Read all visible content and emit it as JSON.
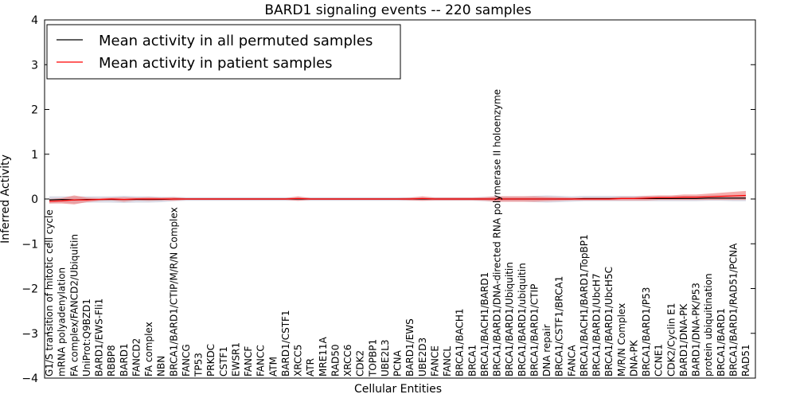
{
  "chart_data": {
    "type": "line",
    "title": "BARD1 signaling events -- 220 samples",
    "xlabel": "Cellular Entities",
    "ylabel": "Inferred Activity",
    "ylim": [
      -4,
      4
    ],
    "yticks": [
      -4,
      -3,
      -2,
      -1,
      0,
      1,
      2,
      3,
      4
    ],
    "ytick_labels": [
      "−4",
      "−3",
      "−2",
      "−1",
      "0",
      "1",
      "2",
      "3",
      "4"
    ],
    "grid": false,
    "legend_position": "top-left",
    "colors": {
      "permuted": "#000000",
      "patient": "#ff0000",
      "patient_band": "#f08080",
      "permuted_band": "#b0b0c8"
    },
    "categories": [
      "G1/S transition of mitotic cell cycle",
      "mRNA polyadenylation",
      "FA complex/FANCD2/Ubiquitin",
      "UniProt:Q9BZD1",
      "BARD1/EWS-Fli1",
      "RBBP8",
      "BARD1",
      "FANCD2",
      "FA complex",
      "NBN",
      "BRCA1/BARD1/CTIP/M/R/N Complex",
      "FANCG",
      "TP53",
      "PRKDC",
      "CSTF1",
      "EWSR1",
      "FANCF",
      "FANCC",
      "ATM",
      "BARD1/CSTF1",
      "XRCC5",
      "ATR",
      "MRE11A",
      "RAD50",
      "XRCC6",
      "CDK2",
      "TOPBP1",
      "UBE2L3",
      "PCNA",
      "BARD1/EWS",
      "UBE2D3",
      "FANCE",
      "FANCL",
      "BRCA1/BACH1",
      "BRCA1",
      "BRCA1/BACH1/BARD1",
      "BRCA1/BARD1/DNA-directed RNA polymerase II holoenzyme",
      "BRCA1/BARD1/Ubiquitin",
      "BRCA1/BARD1/ubiquitin",
      "BRCA1/BARD1/CTIP",
      "DNA repair",
      "BRCA1/CSTF1/BRCA1",
      "FANCA",
      "BRCA1/BACH1/BARD1/TopBP1",
      "BRCA1/BARD1/UbcH7",
      "BRCA1/BARD1/UbcH5C",
      "M/R/N Complex",
      "DNA-PK",
      "BRCA1/BARD1/P53",
      "CCNE1",
      "CDK2/Cyclin E1",
      "BARD1/DNA-PK",
      "BARD1/DNA-PK/P53",
      "protein ubiquitination",
      "BRCA1/BARD1",
      "BRCA1/BARD1/RAD51/PCNA",
      "RAD51"
    ],
    "series": [
      {
        "name": "Mean activity in all permuted samples",
        "values": [
          -0.02,
          -0.01,
          -0.02,
          -0.01,
          -0.01,
          -0.01,
          -0.01,
          -0.01,
          -0.01,
          -0.01,
          0,
          0,
          0,
          0,
          0,
          0,
          0,
          0,
          0,
          0,
          0,
          0,
          0,
          0,
          0,
          0,
          0,
          0,
          0,
          0,
          0,
          0,
          0,
          0,
          0,
          0,
          0,
          0,
          0,
          0,
          0,
          0,
          0,
          0.01,
          0.01,
          0.01,
          0.01,
          0.01,
          0.01,
          0.01,
          0.01,
          0.01,
          0.01,
          0.02,
          0.02,
          0.02,
          0.02
        ],
        "band": [
          0.08,
          0.07,
          0.08,
          0.07,
          0.07,
          0.07,
          0.08,
          0.07,
          0.07,
          0.06,
          0.05,
          0.04,
          0.04,
          0.04,
          0.04,
          0.04,
          0.04,
          0.04,
          0.04,
          0.04,
          0.04,
          0.04,
          0.04,
          0.04,
          0.04,
          0.04,
          0.04,
          0.04,
          0.04,
          0.04,
          0.04,
          0.04,
          0.04,
          0.04,
          0.04,
          0.05,
          0.06,
          0.06,
          0.06,
          0.07,
          0.08,
          0.07,
          0.06,
          0.06,
          0.06,
          0.06,
          0.06,
          0.06,
          0.06,
          0.06,
          0.06,
          0.06,
          0.06,
          0.06,
          0.06,
          0.07,
          0.07
        ]
      },
      {
        "name": "Mean activity in patient samples",
        "values": [
          -0.05,
          -0.04,
          -0.02,
          -0.02,
          -0.01,
          0,
          -0.01,
          0,
          0,
          0,
          0,
          0,
          0,
          0,
          0,
          0,
          0,
          0,
          0,
          0,
          0.01,
          0,
          0,
          0,
          0,
          0,
          0,
          0,
          0,
          0,
          0.01,
          0,
          0,
          0,
          0,
          0,
          0,
          0,
          0,
          0,
          0,
          0,
          0,
          0,
          0,
          0,
          0.01,
          0.01,
          0.02,
          0.03,
          0.03,
          0.04,
          0.04,
          0.05,
          0.06,
          0.07,
          0.08
        ],
        "band": [
          0.05,
          0.06,
          0.1,
          0.05,
          0.03,
          0.03,
          0.05,
          0.03,
          0.04,
          0.03,
          0.04,
          0.02,
          0.02,
          0.02,
          0.02,
          0.02,
          0.02,
          0.02,
          0.02,
          0.02,
          0.05,
          0.02,
          0.02,
          0.02,
          0.02,
          0.02,
          0.02,
          0.02,
          0.02,
          0.03,
          0.05,
          0.03,
          0.03,
          0.03,
          0.03,
          0.04,
          0.06,
          0.06,
          0.06,
          0.06,
          0.05,
          0.04,
          0.03,
          0.03,
          0.03,
          0.03,
          0.04,
          0.04,
          0.05,
          0.05,
          0.05,
          0.06,
          0.06,
          0.07,
          0.08,
          0.09,
          0.1
        ]
      }
    ]
  }
}
